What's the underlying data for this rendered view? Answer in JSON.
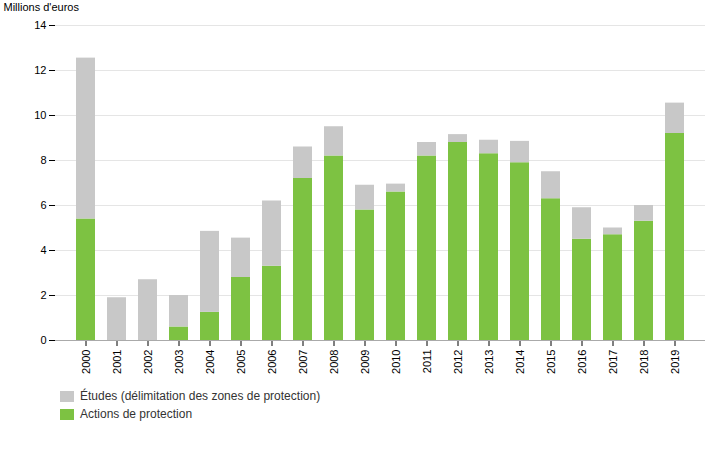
{
  "chart_data": {
    "type": "bar",
    "stacked": true,
    "categories": [
      "2000",
      "2001",
      "2002",
      "2003",
      "2004",
      "2005",
      "2006",
      "2007",
      "2008",
      "2009",
      "2010",
      "2011",
      "2012",
      "2013",
      "2014",
      "2015",
      "2016",
      "2017",
      "2018",
      "2019"
    ],
    "series": [
      {
        "name": "Actions de protection",
        "color": "#7DC242",
        "values": [
          5.4,
          0.0,
          0.0,
          0.6,
          1.25,
          2.8,
          3.3,
          7.2,
          8.2,
          5.8,
          6.6,
          8.2,
          8.8,
          8.3,
          7.9,
          6.3,
          4.5,
          4.7,
          5.3,
          9.2
        ]
      },
      {
        "name": "Études (délimitation des zones de protection)",
        "color": "#C8C8C8",
        "values": [
          7.15,
          1.9,
          2.7,
          1.4,
          3.6,
          1.75,
          2.9,
          1.4,
          1.3,
          1.1,
          0.35,
          0.6,
          0.35,
          0.6,
          0.95,
          1.2,
          1.4,
          0.3,
          0.7,
          1.35
        ]
      }
    ],
    "ylabel": "Millions d'euros",
    "ylim": [
      0,
      14
    ],
    "yticks": [
      0,
      2,
      4,
      6,
      8,
      10,
      12,
      14
    ],
    "grid": true,
    "legend": "bottom"
  }
}
